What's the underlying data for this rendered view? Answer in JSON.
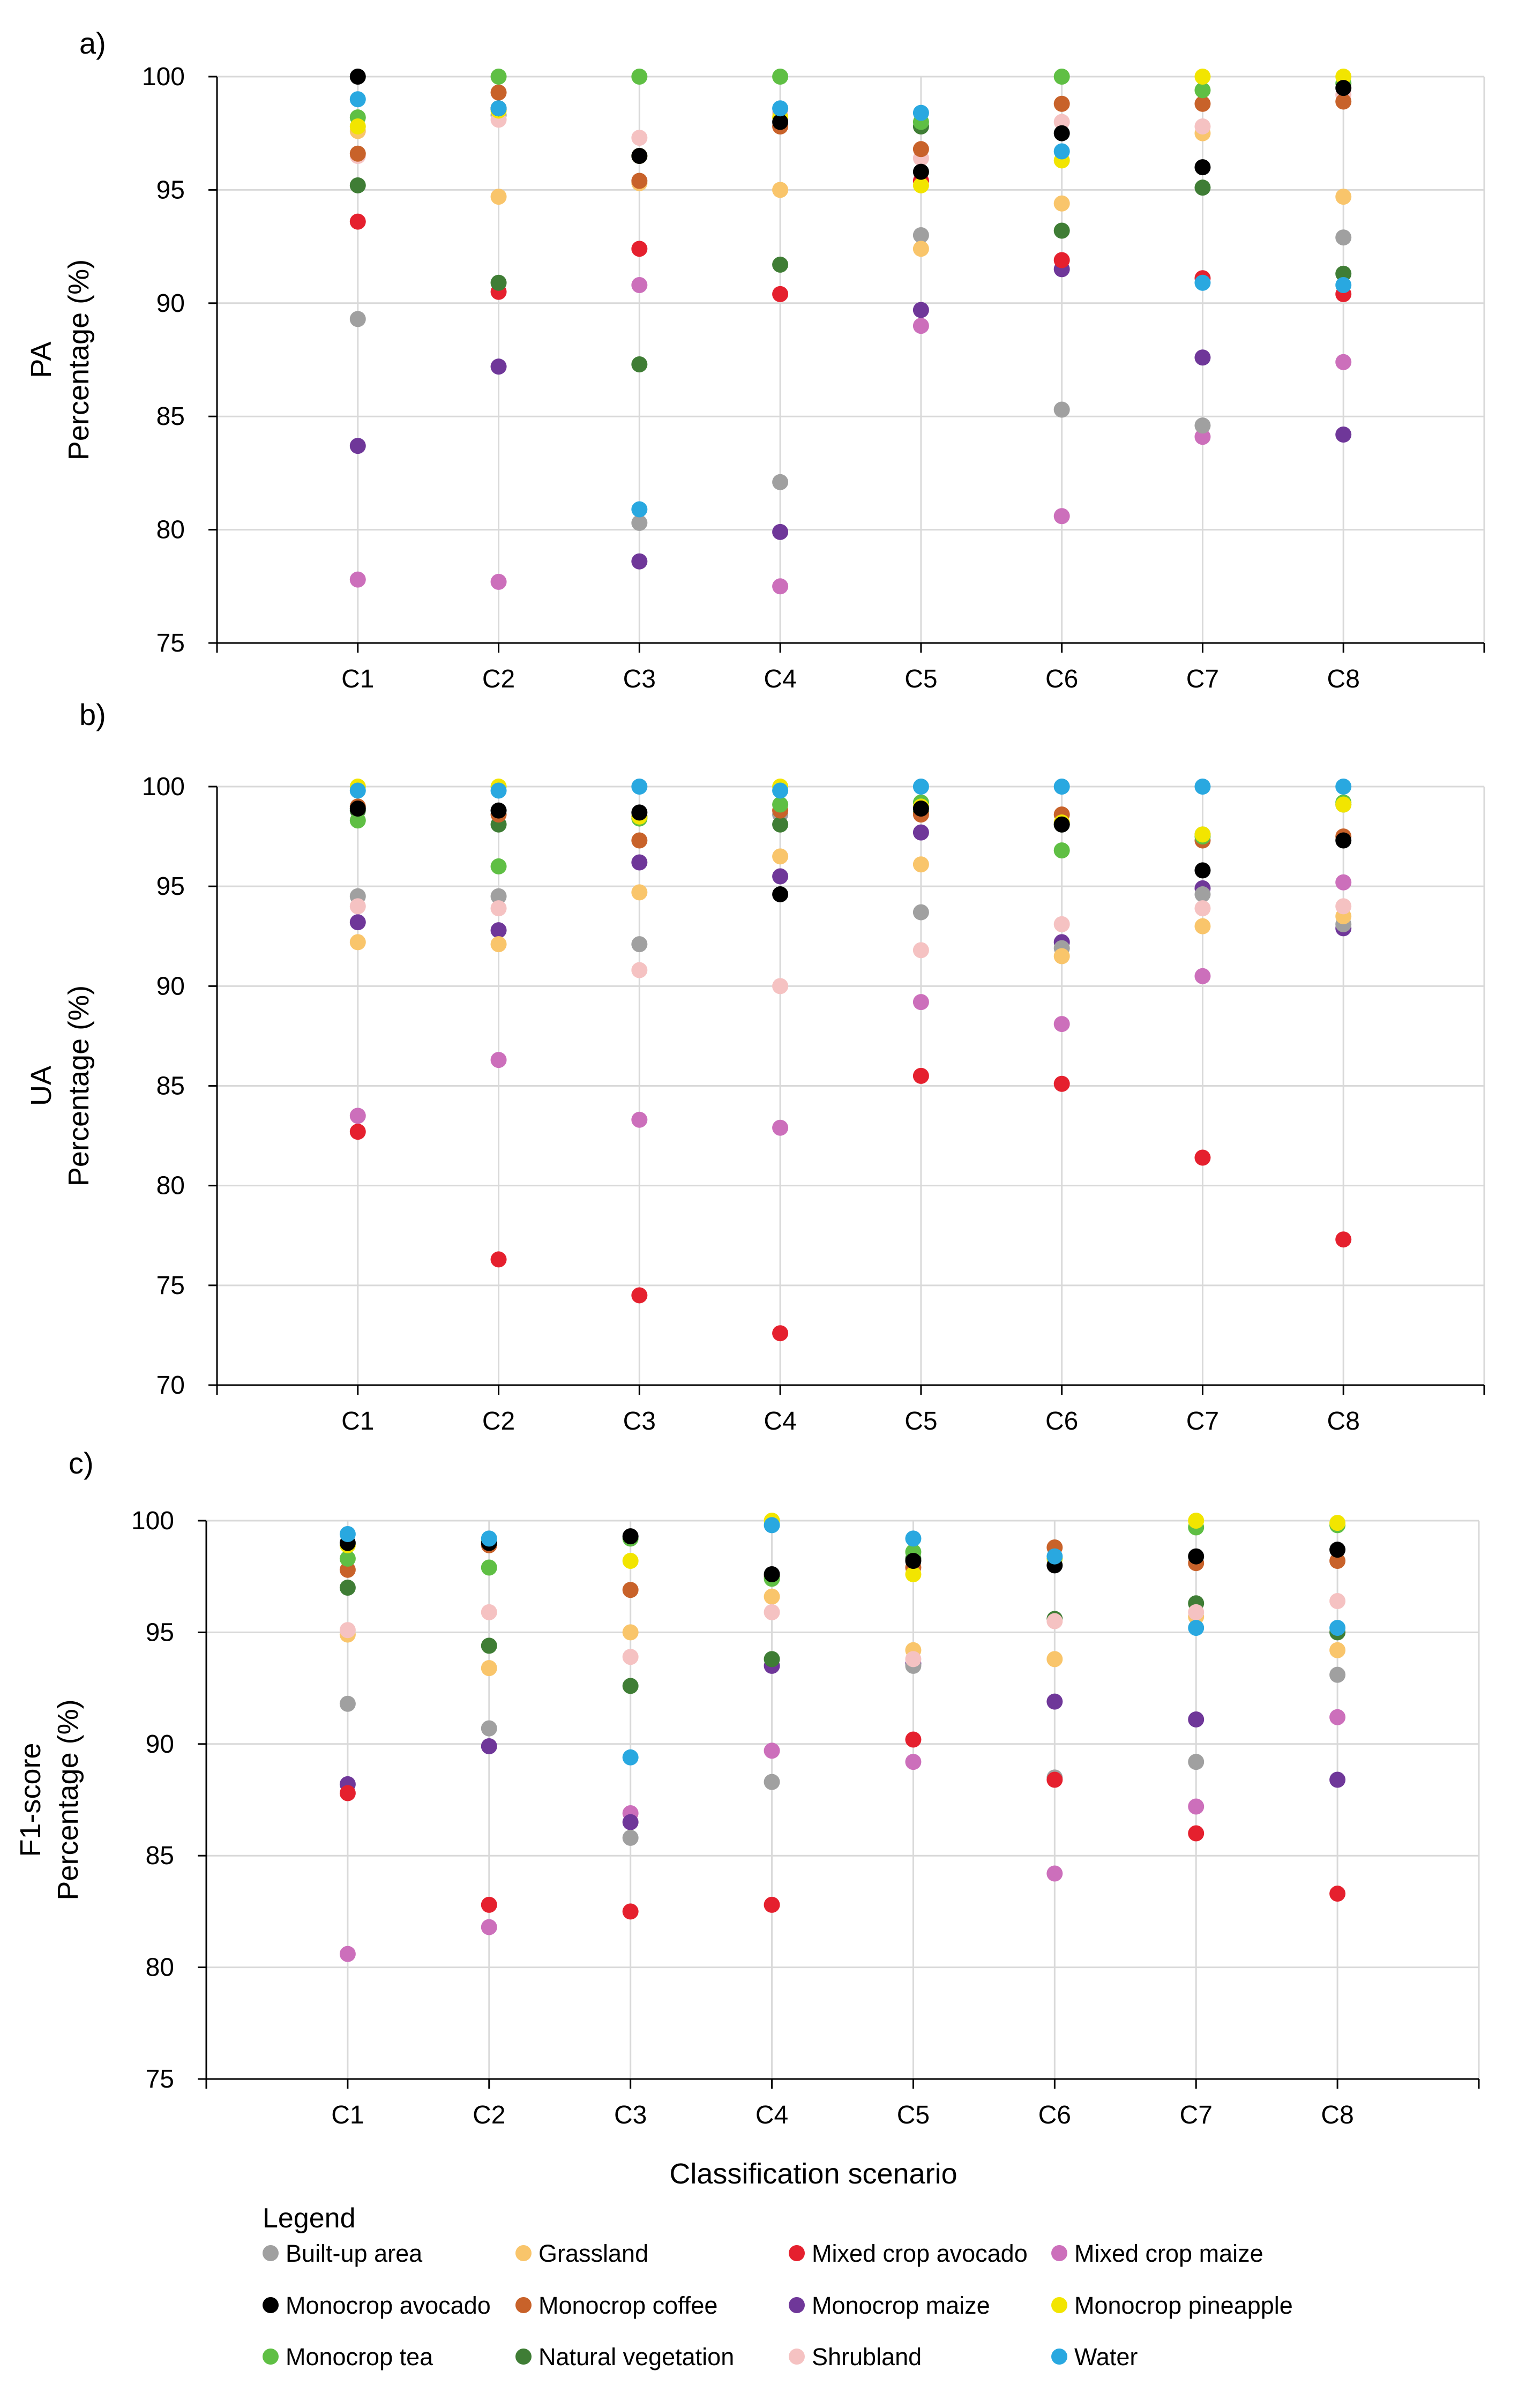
{
  "figure": {
    "xlabel": "Classification scenario",
    "legend_title": "Legend"
  },
  "categories": [
    "C1",
    "C2",
    "C3",
    "C4",
    "C5",
    "C6",
    "C7",
    "C8"
  ],
  "classes": [
    {
      "name": "Built-up area",
      "color": "#a0a0a0"
    },
    {
      "name": "Grassland",
      "color": "#f9c56b"
    },
    {
      "name": "Mixed crop avocado",
      "color": "#e5202e"
    },
    {
      "name": "Mixed crop maize",
      "color": "#cc6fbb"
    },
    {
      "name": "Monocrop avocado",
      "color": "#000000"
    },
    {
      "name": "Monocrop coffee",
      "color": "#c8622a"
    },
    {
      "name": "Monocrop maize",
      "color": "#6f3799"
    },
    {
      "name": "Monocrop pineapple",
      "color": "#f2e500"
    },
    {
      "name": "Monocrop tea",
      "color": "#5fbf44"
    },
    {
      "name": "Natural vegetation",
      "color": "#3f7d35"
    },
    {
      "name": "Shrubland",
      "color": "#f5c2c2"
    },
    {
      "name": "Water",
      "color": "#29a8e0"
    }
  ],
  "chart_data": [
    {
      "type": "scatter",
      "panel_label": "a)",
      "ylabel_metric": "PA",
      "ylabel": "Percentage (%)",
      "ylim": [
        75,
        100
      ],
      "yticks": [
        75,
        80,
        85,
        90,
        95,
        100
      ],
      "grid": true,
      "series": [
        {
          "name": "Built-up area",
          "values": [
            89.3,
            98.3,
            80.3,
            82.1,
            93.0,
            85.3,
            84.6,
            92.9
          ]
        },
        {
          "name": "Grassland",
          "values": [
            97.6,
            94.7,
            95.3,
            95.0,
            92.4,
            94.4,
            97.5,
            94.7
          ]
        },
        {
          "name": "Mixed crop avocado",
          "values": [
            93.6,
            90.5,
            92.4,
            90.4,
            95.4,
            91.9,
            91.1,
            90.4
          ]
        },
        {
          "name": "Mixed crop maize",
          "values": [
            77.8,
            77.7,
            90.8,
            77.5,
            89.0,
            80.6,
            84.1,
            87.4
          ]
        },
        {
          "name": "Monocrop avocado",
          "values": [
            100.0,
            98.6,
            96.5,
            98.0,
            95.8,
            97.5,
            96.0,
            99.5
          ]
        },
        {
          "name": "Monocrop coffee",
          "values": [
            96.6,
            99.3,
            95.4,
            97.8,
            96.8,
            98.8,
            98.8,
            98.9
          ]
        },
        {
          "name": "Monocrop maize",
          "values": [
            83.7,
            87.2,
            78.6,
            79.9,
            89.7,
            91.5,
            87.6,
            84.2
          ]
        },
        {
          "name": "Monocrop pineapple",
          "values": [
            97.8,
            98.5,
            96.5,
            98.2,
            95.2,
            96.3,
            100.0,
            100.0
          ]
        },
        {
          "name": "Monocrop tea",
          "values": [
            98.2,
            100.0,
            100.0,
            100.0,
            98.0,
            100.0,
            99.4,
            99.7
          ]
        },
        {
          "name": "Natural vegetation",
          "values": [
            95.2,
            90.9,
            87.3,
            91.7,
            97.8,
            93.2,
            95.1,
            91.3
          ]
        },
        {
          "name": "Shrubland",
          "values": [
            96.5,
            98.1,
            97.3,
            98.4,
            96.4,
            98.0,
            97.8,
            99.2
          ]
        },
        {
          "name": "Water",
          "values": [
            99.0,
            98.6,
            80.9,
            98.6,
            98.4,
            96.7,
            90.9,
            90.8
          ]
        }
      ]
    },
    {
      "type": "scatter",
      "panel_label": "b)",
      "ylabel_metric": "UA",
      "ylabel": "Percentage (%)",
      "ylim": [
        70,
        100
      ],
      "yticks": [
        70,
        75,
        80,
        85,
        90,
        95,
        100
      ],
      "grid": true,
      "series": [
        {
          "name": "Built-up area",
          "values": [
            94.5,
            94.5,
            92.1,
            98.6,
            93.7,
            91.9,
            94.6,
            93.1
          ]
        },
        {
          "name": "Grassland",
          "values": [
            92.2,
            92.1,
            94.7,
            96.5,
            96.1,
            91.5,
            93.0,
            93.5
          ]
        },
        {
          "name": "Mixed crop avocado",
          "values": [
            82.7,
            76.3,
            74.5,
            72.6,
            85.5,
            85.1,
            81.4,
            77.3
          ]
        },
        {
          "name": "Mixed crop maize",
          "values": [
            83.5,
            86.3,
            83.3,
            82.9,
            89.2,
            88.1,
            90.5,
            95.2
          ]
        },
        {
          "name": "Monocrop avocado",
          "values": [
            98.9,
            98.8,
            98.7,
            94.6,
            98.9,
            98.1,
            95.8,
            97.3
          ]
        },
        {
          "name": "Monocrop coffee",
          "values": [
            99.0,
            98.6,
            97.3,
            98.8,
            98.6,
            98.6,
            97.3,
            97.5
          ]
        },
        {
          "name": "Monocrop maize",
          "values": [
            93.2,
            92.8,
            96.2,
            95.5,
            97.7,
            92.2,
            94.9,
            92.9
          ]
        },
        {
          "name": "Monocrop pineapple",
          "values": [
            100.0,
            100.0,
            98.5,
            100.0,
            99.0,
            98.2,
            97.6,
            99.1
          ]
        },
        {
          "name": "Monocrop tea",
          "values": [
            98.3,
            96.0,
            98.4,
            99.1,
            99.2,
            96.8,
            97.5,
            99.2
          ]
        },
        {
          "name": "Natural vegetation",
          "values": [
            98.8,
            98.1,
            98.5,
            98.1,
            98.7,
            98.1,
            97.6,
            99.1
          ]
        },
        {
          "name": "Shrubland",
          "values": [
            94.0,
            93.9,
            90.8,
            90.0,
            91.8,
            93.1,
            93.9,
            94.0
          ]
        },
        {
          "name": "Water",
          "values": [
            99.8,
            99.8,
            100.0,
            99.8,
            100.0,
            100.0,
            100.0,
            100.0
          ]
        }
      ]
    },
    {
      "type": "scatter",
      "panel_label": "c)",
      "ylabel_metric": "F1-score",
      "ylabel": "Percentage (%)",
      "ylim": [
        75,
        100
      ],
      "yticks": [
        75,
        80,
        85,
        90,
        95,
        100
      ],
      "grid": true,
      "series": [
        {
          "name": "Built-up area",
          "values": [
            91.8,
            90.7,
            85.8,
            88.3,
            93.5,
            88.5,
            89.2,
            93.1
          ]
        },
        {
          "name": "Grassland",
          "values": [
            94.9,
            93.4,
            95.0,
            96.6,
            94.2,
            93.8,
            95.7,
            94.2
          ]
        },
        {
          "name": "Mixed crop avocado",
          "values": [
            87.8,
            82.8,
            82.5,
            82.8,
            90.2,
            88.4,
            86.0,
            83.3
          ]
        },
        {
          "name": "Mixed crop maize",
          "values": [
            80.6,
            81.8,
            86.9,
            89.7,
            89.2,
            84.2,
            87.2,
            91.2
          ]
        },
        {
          "name": "Monocrop avocado",
          "values": [
            99.0,
            99.0,
            99.3,
            97.6,
            98.2,
            98.0,
            98.4,
            98.7
          ]
        },
        {
          "name": "Monocrop coffee",
          "values": [
            97.8,
            98.9,
            96.9,
            97.5,
            97.9,
            98.8,
            98.1,
            98.2
          ]
        },
        {
          "name": "Monocrop maize",
          "values": [
            88.2,
            89.9,
            86.5,
            93.5,
            93.6,
            91.9,
            91.1,
            88.4
          ]
        },
        {
          "name": "Monocrop pineapple",
          "values": [
            98.9,
            99.1,
            98.2,
            100.0,
            97.6,
            98.3,
            100.0,
            99.9
          ]
        },
        {
          "name": "Monocrop tea",
          "values": [
            98.3,
            97.9,
            99.2,
            97.4,
            98.6,
            98.3,
            99.7,
            99.8
          ]
        },
        {
          "name": "Natural vegetation",
          "values": [
            97.0,
            94.4,
            92.6,
            93.8,
            98.3,
            95.6,
            96.3,
            95.0
          ]
        },
        {
          "name": "Shrubland",
          "values": [
            95.1,
            95.9,
            93.9,
            95.9,
            93.8,
            95.5,
            95.9,
            96.4
          ]
        },
        {
          "name": "Water",
          "values": [
            99.4,
            99.2,
            89.4,
            99.8,
            99.2,
            98.4,
            95.2,
            95.2
          ]
        }
      ]
    }
  ]
}
